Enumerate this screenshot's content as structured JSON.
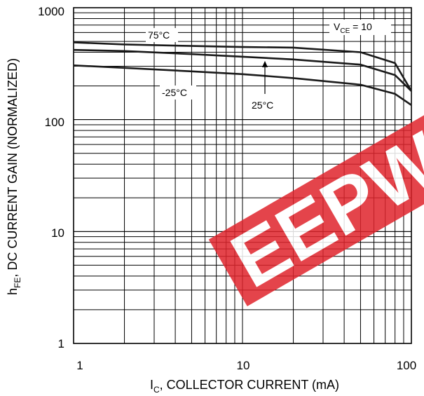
{
  "chart_data": {
    "type": "line",
    "xscale": "log",
    "yscale": "log",
    "xlim": [
      1,
      100
    ],
    "ylim": [
      1,
      1000
    ],
    "grid": true,
    "x_ticks": [
      "1",
      "10",
      "100"
    ],
    "y_ticks": [
      "1",
      "10",
      "100",
      "1000"
    ],
    "xlabel": {
      "main": "I",
      "sub": "C",
      "rest": ", COLLECTOR CURRENT (mA)"
    },
    "ylabel": {
      "main": "h",
      "sub": "FE",
      "rest": ", DC CURRENT GAIN (NORMALIZED)"
    },
    "condition": {
      "main": "V",
      "sub": "CE",
      "rest": " = 10"
    },
    "series": [
      {
        "name": "75°C",
        "x": [
          1,
          2,
          5,
          10,
          20,
          50,
          80,
          100
        ],
        "y": [
          490,
          470,
          455,
          445,
          440,
          400,
          320,
          180
        ]
      },
      {
        "name": "25°C",
        "x": [
          1,
          2,
          5,
          10,
          20,
          50,
          80,
          100
        ],
        "y": [
          420,
          410,
          385,
          365,
          345,
          310,
          250,
          180
        ]
      },
      {
        "name": "-25°C",
        "x": [
          1,
          2,
          5,
          10,
          20,
          50,
          80,
          100
        ],
        "y": [
          305,
          290,
          270,
          255,
          235,
          205,
          170,
          135
        ]
      }
    ],
    "watermark": "EEPW",
    "colors": {
      "curve": "#1a1a1a",
      "grid": "#000000",
      "watermark": "#e0242c"
    }
  }
}
